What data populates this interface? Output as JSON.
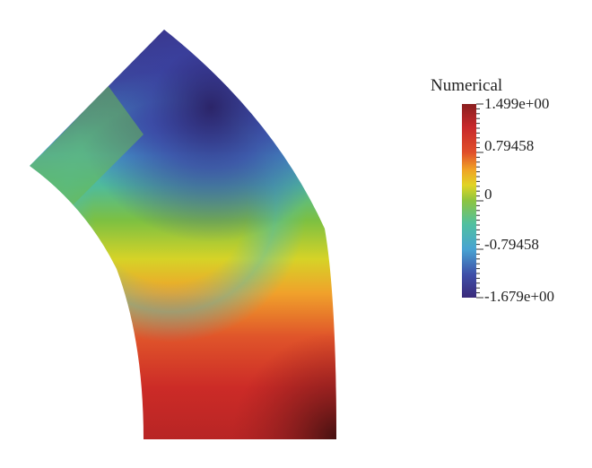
{
  "colorbar": {
    "title": "Numerical",
    "max_label": "1.499e+00",
    "min_label": "-1.679e+00",
    "ticks": [
      "1.499e+00",
      "0.79458",
      "0",
      "-0.79458",
      "-1.679e+00"
    ],
    "range": [
      -1.679,
      1.499
    ],
    "colors": [
      "#3a2a7a",
      "#3f5fb2",
      "#49bcc6",
      "#62b84a",
      "#d8d623",
      "#f09a23",
      "#d8302a",
      "#c42a28",
      "#8a1f1f"
    ]
  }
}
